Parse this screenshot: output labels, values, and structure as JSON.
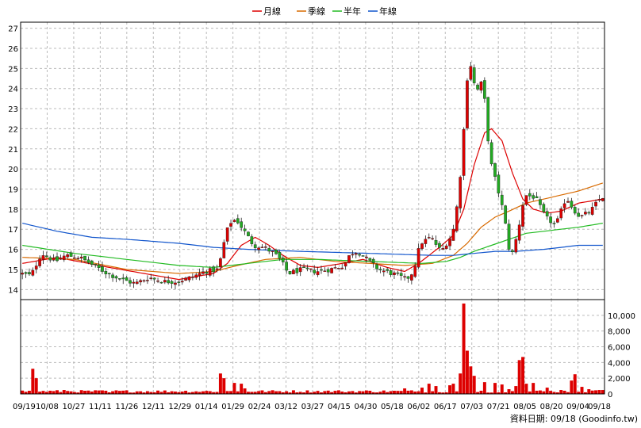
{
  "chart_data": [
    {
      "type": "candlestick",
      "legend": [
        {
          "label": "月線",
          "color": "#dd0000"
        },
        {
          "label": "季線",
          "color": "#d86a00"
        },
        {
          "label": "半年",
          "color": "#22bb22"
        },
        {
          "label": "年線",
          "color": "#1155cc"
        }
      ],
      "ylim": [
        13.5,
        27.3
      ],
      "yticks": [
        14,
        15,
        16,
        17,
        18,
        19,
        20,
        21,
        22,
        23,
        24,
        25,
        26,
        27
      ],
      "xticks": [
        "09/19",
        "10/08",
        "10/27",
        "11/11",
        "11/26",
        "12/11",
        "12/29",
        "01/14",
        "01/29",
        "02/24",
        "03/12",
        "03/27",
        "04/15",
        "04/30",
        "05/18",
        "06/02",
        "06/17",
        "07/03",
        "07/21",
        "08/05",
        "08/20",
        "09/04",
        "09/18"
      ],
      "candle_up_color": "#dd0000",
      "candle_down_color": "#22aa22",
      "price_path": [
        [
          0,
          14.8
        ],
        [
          3,
          14.7
        ],
        [
          6,
          15.8
        ],
        [
          10,
          15.4
        ],
        [
          13,
          15.7
        ],
        [
          17,
          15.6
        ],
        [
          21,
          15.2
        ],
        [
          25,
          14.8
        ],
        [
          29,
          14.5
        ],
        [
          33,
          14.3
        ],
        [
          37,
          14.6
        ],
        [
          41,
          14.4
        ],
        [
          45,
          14.4
        ],
        [
          49,
          14.6
        ],
        [
          53,
          14.9
        ],
        [
          57,
          15.0
        ],
        [
          58,
          16.0
        ],
        [
          60,
          17.3
        ],
        [
          62,
          17.5
        ],
        [
          64,
          17.0
        ],
        [
          67,
          16.2
        ],
        [
          70,
          16.1
        ],
        [
          73,
          15.8
        ],
        [
          75,
          15.4
        ],
        [
          77,
          14.8
        ],
        [
          81,
          15.0
        ],
        [
          85,
          14.9
        ],
        [
          89,
          15.0
        ],
        [
          93,
          15.2
        ],
        [
          95,
          15.8
        ],
        [
          97,
          15.9
        ],
        [
          99,
          15.6
        ],
        [
          103,
          15.0
        ],
        [
          107,
          14.8
        ],
        [
          111,
          14.5
        ],
        [
          113,
          14.9
        ],
        [
          115,
          16.3
        ],
        [
          118,
          16.6
        ],
        [
          121,
          15.9
        ],
        [
          124,
          16.7
        ],
        [
          125,
          17.3
        ],
        [
          127,
          20.5
        ],
        [
          128,
          23.4
        ],
        [
          129,
          25.6
        ],
        [
          130,
          24.7
        ],
        [
          131,
          23.8
        ],
        [
          133,
          24.4
        ],
        [
          135,
          20.5
        ],
        [
          137,
          19.2
        ],
        [
          139,
          17.8
        ],
        [
          141,
          15.5
        ],
        [
          143,
          16.8
        ],
        [
          145,
          18.7
        ],
        [
          148,
          18.6
        ],
        [
          151,
          17.6
        ],
        [
          154,
          17.2
        ],
        [
          157,
          18.6
        ],
        [
          159,
          18.0
        ],
        [
          161,
          17.6
        ],
        [
          164,
          17.9
        ],
        [
          167,
          18.6
        ]
      ],
      "ma": {
        "月線": [
          [
            0,
            15.3
          ],
          [
            10,
            15.6
          ],
          [
            25,
            15.1
          ],
          [
            45,
            14.5
          ],
          [
            55,
            14.8
          ],
          [
            59,
            15.3
          ],
          [
            63,
            16.2
          ],
          [
            67,
            16.6
          ],
          [
            71,
            16.2
          ],
          [
            75,
            15.7
          ],
          [
            80,
            15.2
          ],
          [
            85,
            15.1
          ],
          [
            92,
            15.3
          ],
          [
            98,
            15.5
          ],
          [
            105,
            15.1
          ],
          [
            110,
            14.9
          ],
          [
            114,
            15.3
          ],
          [
            120,
            16.1
          ],
          [
            124,
            16.7
          ],
          [
            127,
            18.0
          ],
          [
            130,
            20.2
          ],
          [
            133,
            21.8
          ],
          [
            135,
            22.0
          ],
          [
            138,
            21.4
          ],
          [
            141,
            19.8
          ],
          [
            144,
            18.5
          ],
          [
            147,
            18.0
          ],
          [
            151,
            17.8
          ],
          [
            155,
            17.9
          ],
          [
            160,
            18.3
          ],
          [
            167,
            18.5
          ]
        ],
        "季線": [
          [
            0,
            15.6
          ],
          [
            15,
            15.5
          ],
          [
            30,
            15.0
          ],
          [
            45,
            14.8
          ],
          [
            55,
            14.9
          ],
          [
            62,
            15.2
          ],
          [
            70,
            15.5
          ],
          [
            80,
            15.6
          ],
          [
            90,
            15.4
          ],
          [
            100,
            15.3
          ],
          [
            110,
            15.2
          ],
          [
            118,
            15.3
          ],
          [
            124,
            15.7
          ],
          [
            128,
            16.3
          ],
          [
            132,
            17.1
          ],
          [
            136,
            17.6
          ],
          [
            140,
            17.9
          ],
          [
            145,
            18.3
          ],
          [
            150,
            18.5
          ],
          [
            155,
            18.7
          ],
          [
            160,
            18.9
          ],
          [
            167,
            19.3
          ]
        ],
        "半年": [
          [
            0,
            16.2
          ],
          [
            15,
            15.8
          ],
          [
            30,
            15.5
          ],
          [
            45,
            15.2
          ],
          [
            55,
            15.1
          ],
          [
            65,
            15.3
          ],
          [
            75,
            15.5
          ],
          [
            85,
            15.5
          ],
          [
            100,
            15.4
          ],
          [
            115,
            15.3
          ],
          [
            122,
            15.4
          ],
          [
            126,
            15.6
          ],
          [
            130,
            15.9
          ],
          [
            135,
            16.2
          ],
          [
            140,
            16.5
          ],
          [
            145,
            16.8
          ],
          [
            150,
            16.9
          ],
          [
            155,
            17.0
          ],
          [
            160,
            17.1
          ],
          [
            167,
            17.3
          ]
        ],
        "年線": [
          [
            0,
            17.3
          ],
          [
            10,
            16.9
          ],
          [
            20,
            16.6
          ],
          [
            30,
            16.5
          ],
          [
            45,
            16.3
          ],
          [
            55,
            16.1
          ],
          [
            65,
            16.0
          ],
          [
            80,
            15.9
          ],
          [
            100,
            15.8
          ],
          [
            118,
            15.7
          ],
          [
            124,
            15.7
          ],
          [
            130,
            15.8
          ],
          [
            136,
            15.9
          ],
          [
            142,
            15.9
          ],
          [
            150,
            16.0
          ],
          [
            160,
            16.2
          ],
          [
            167,
            16.2
          ]
        ]
      },
      "volume_ylim": [
        0,
        12000
      ],
      "volume_yticks": [
        "0",
        "2,000",
        "4,000",
        "6,000",
        "8,000",
        "10,000"
      ],
      "volume_color": "#dd0000",
      "volume_peaks": [
        [
          3,
          3200
        ],
        [
          4,
          2000
        ],
        [
          12,
          500
        ],
        [
          25,
          200
        ],
        [
          57,
          2600
        ],
        [
          58,
          2000
        ],
        [
          61,
          1400
        ],
        [
          63,
          1300
        ],
        [
          64,
          700
        ],
        [
          92,
          300
        ],
        [
          110,
          700
        ],
        [
          113,
          300
        ],
        [
          115,
          800
        ],
        [
          117,
          1300
        ],
        [
          119,
          1000
        ],
        [
          123,
          1100
        ],
        [
          124,
          1300
        ],
        [
          126,
          2600
        ],
        [
          127,
          11500
        ],
        [
          128,
          5500
        ],
        [
          129,
          3500
        ],
        [
          130,
          2300
        ],
        [
          133,
          1500
        ],
        [
          136,
          1400
        ],
        [
          138,
          1200
        ],
        [
          140,
          600
        ],
        [
          142,
          1000
        ],
        [
          143,
          4300
        ],
        [
          144,
          4700
        ],
        [
          145,
          1300
        ],
        [
          147,
          1400
        ],
        [
          151,
          800
        ],
        [
          155,
          500
        ],
        [
          158,
          1700
        ],
        [
          159,
          2500
        ],
        [
          161,
          900
        ],
        [
          163,
          600
        ],
        [
          166,
          500
        ],
        [
          167,
          500
        ]
      ],
      "volume_baseline": 350,
      "n_bars": 168,
      "credit": "資料日期: 09/18  (Goodinfo.tw)"
    }
  ]
}
